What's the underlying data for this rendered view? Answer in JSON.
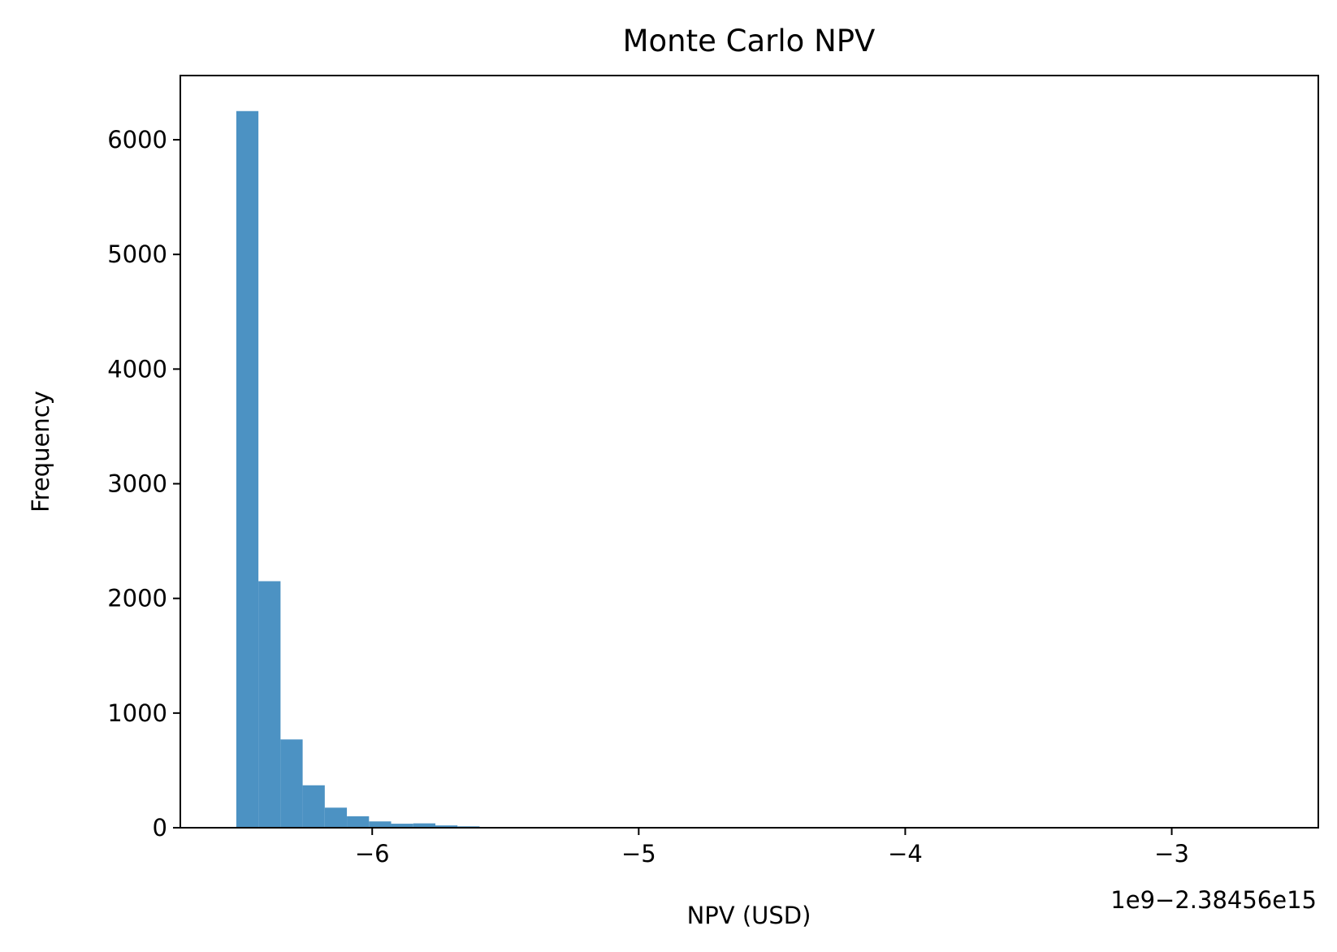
{
  "chart_data": {
    "type": "bar",
    "title": "Monte Carlo NPV",
    "xlabel": "NPV (USD)",
    "ylabel": "Frequency",
    "x_offset_label": "1e9−2.38456e15",
    "xlim": [
      -6.72,
      -2.45
    ],
    "ylim": [
      0,
      6560
    ],
    "xticks": [
      -6,
      -5,
      -4,
      -3
    ],
    "xtick_labels": [
      "−6",
      "−5",
      "−4",
      "−3"
    ],
    "yticks": [
      0,
      1000,
      2000,
      3000,
      4000,
      5000,
      6000
    ],
    "ytick_labels": [
      "0",
      "1000",
      "2000",
      "3000",
      "4000",
      "5000",
      "6000"
    ],
    "bin_start": -6.51,
    "bin_width": 0.083,
    "bin_counts": [
      6250,
      2150,
      770,
      370,
      175,
      100,
      55,
      35,
      38,
      20,
      12,
      3,
      2,
      1
    ],
    "bar_color": "#4c92c3",
    "grid": false,
    "legend": "none"
  }
}
